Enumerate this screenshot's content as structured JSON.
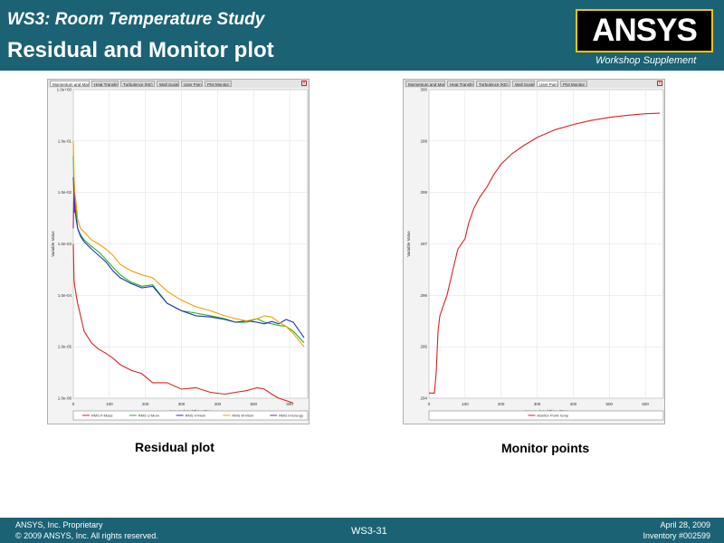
{
  "header": {
    "subtitle": "WS3: Room Temperature Study",
    "title": "Residual and Monitor plot",
    "logo": "ANSYS",
    "supplement": "Workshop Supplement"
  },
  "colors": {
    "header_bg": "#1b6275",
    "logo_bg": "#000000",
    "logo_border": "#f2c400"
  },
  "captions": {
    "left": "Residual plot",
    "right": "Monitor points"
  },
  "footer": {
    "left_line1": "ANSYS, Inc. Proprietary",
    "left_line2": "© 2009 ANSYS, Inc.  All rights reserved.",
    "center": "WS3-31",
    "right_line1": "April 28, 2009",
    "right_line2": "Inventory #002599"
  },
  "chart_data": [
    {
      "type": "line",
      "tabs": [
        "Momentum and Mass",
        "Heat Transfer",
        "Turbulence (KE)",
        "Wall Scale",
        "User Points",
        "Plot Monitor 1"
      ],
      "active_tab": 0,
      "xlabel": "Accumulated Time Step",
      "ylabel": "Variable Value",
      "xlim": [
        0,
        650
      ],
      "ylim": [
        1e-06,
        1
      ],
      "yscale": "log",
      "x_ticks": [
        "0",
        "100",
        "200",
        "300",
        "400",
        "500",
        "600"
      ],
      "y_ticks": [
        "1.0e-06",
        "1.0e-05",
        "1.0e-04",
        "1.0e-03",
        "1.0e-02",
        "1.0e-01",
        "1.0e+00"
      ],
      "grid": true,
      "legend_position": "bottom",
      "series": [
        {
          "name": "RMS P-Mass",
          "color": "#e02020",
          "x": [
            0,
            2,
            4,
            8,
            12,
            20,
            30,
            50,
            70,
            90,
            110,
            130,
            160,
            190,
            220,
            260,
            300,
            340,
            380,
            420,
            450,
            480,
            510,
            530,
            550,
            570,
            590,
            610
          ],
          "y": [
            0.001,
            0.0002,
            0.00015,
            0.0001,
            7e-05,
            4e-05,
            2e-05,
            1.2e-05,
            9e-06,
            7.5e-06,
            6e-06,
            4.5e-06,
            3.5e-06,
            3e-06,
            2e-06,
            2e-06,
            1.5e-06,
            1.6e-06,
            1.3e-06,
            1.2e-06,
            1.3e-06,
            1.4e-06,
            1.6e-06,
            1.5e-06,
            1.2e-06,
            1e-06,
            9e-07,
            8e-07
          ]
        },
        {
          "name": "RMS U-Mom",
          "color": "#20b020",
          "x": [
            0,
            2,
            4,
            8,
            12,
            20,
            30,
            50,
            70,
            90,
            110,
            130,
            160,
            190,
            220,
            260,
            300,
            340,
            380,
            420,
            450,
            480,
            510,
            530,
            550,
            570,
            590,
            610,
            640
          ],
          "y": [
            0.05,
            0.015,
            0.008,
            0.004,
            0.002,
            0.0015,
            0.0012,
            0.0009,
            0.0007,
            0.0005,
            0.00035,
            0.00025,
            0.00018,
            0.00015,
            0.00016,
            7e-05,
            5e-05,
            4.5e-05,
            4e-05,
            3.5e-05,
            3e-05,
            3e-05,
            3.5e-05,
            3e-05,
            2.8e-05,
            2.6e-05,
            2.5e-05,
            2e-05,
            1.2e-05
          ]
        },
        {
          "name": "RMS V-Mom",
          "color": "#2030c0",
          "x": [
            0,
            2,
            4,
            8,
            12,
            20,
            30,
            50,
            70,
            90,
            110,
            130,
            160,
            190,
            220,
            260,
            300,
            340,
            380,
            420,
            450,
            480,
            510,
            530,
            550,
            570,
            590,
            610,
            640
          ],
          "y": [
            0.02,
            0.01,
            0.005,
            0.003,
            0.002,
            0.0014,
            0.0011,
            0.0008,
            0.0006,
            0.00045,
            0.0003,
            0.00022,
            0.00017,
            0.00014,
            0.00015,
            7e-05,
            5e-05,
            4e-05,
            3.8e-05,
            3.4e-05,
            3e-05,
            3.2e-05,
            3e-05,
            2.8e-05,
            3.1e-05,
            2.8e-05,
            3.4e-05,
            3e-05,
            1.5e-05
          ]
        },
        {
          "name": "RMS W-Mom",
          "color": "#f0a000",
          "x": [
            0,
            2,
            4,
            8,
            12,
            20,
            30,
            50,
            70,
            90,
            110,
            130,
            160,
            190,
            220,
            260,
            300,
            340,
            380,
            420,
            450,
            480,
            510,
            530,
            550,
            570,
            590,
            610,
            640
          ],
          "y": [
            0.1,
            0.02,
            0.01,
            0.006,
            0.003,
            0.002,
            0.0017,
            0.0012,
            0.001,
            0.0008,
            0.0006,
            0.0004,
            0.0003,
            0.00025,
            0.00022,
            0.00012,
            8e-05,
            6e-05,
            5e-05,
            4e-05,
            3.5e-05,
            3.2e-05,
            3.5e-05,
            4e-05,
            3.8e-05,
            3e-05,
            2.5e-05,
            1.8e-05,
            1e-05
          ]
        },
        {
          "name": "RMS H-Energy",
          "color": "#9020a0",
          "x": [
            0,
            1,
            2,
            3
          ],
          "y": [
            0.002,
            0.006,
            0.01,
            0.004
          ]
        }
      ]
    },
    {
      "type": "line",
      "tabs": [
        "Momentum and Mass",
        "Heat Transfer",
        "Turbulence (KE)",
        "Wall Scale",
        "User Points",
        "Plot Monitor 1"
      ],
      "active_tab": 4,
      "xlabel": "Accumulated Time Step",
      "ylabel": "Variable Value",
      "xlim": [
        0,
        650
      ],
      "ylim": [
        294,
        300
      ],
      "x_ticks": [
        "0",
        "100",
        "200",
        "300",
        "400",
        "500",
        "600"
      ],
      "y_ticks": [
        "294",
        "295",
        "296",
        "297",
        "298",
        "299",
        "300"
      ],
      "grid": true,
      "legend_position": "bottom",
      "series": [
        {
          "name": "Monitor Point: temp",
          "color": "#e02020",
          "x": [
            0,
            15,
            20,
            25,
            30,
            40,
            50,
            60,
            70,
            80,
            90,
            100,
            110,
            125,
            140,
            160,
            180,
            200,
            230,
            260,
            300,
            350,
            400,
            450,
            500,
            550,
            600,
            640
          ],
          "y": [
            294.1,
            294.1,
            294.5,
            295.3,
            295.6,
            295.8,
            296.0,
            296.3,
            296.6,
            296.9,
            297.0,
            297.1,
            297.4,
            297.7,
            297.9,
            298.1,
            298.35,
            298.55,
            298.75,
            298.9,
            299.07,
            299.22,
            299.32,
            299.4,
            299.46,
            299.5,
            299.53,
            299.54
          ]
        }
      ]
    }
  ]
}
